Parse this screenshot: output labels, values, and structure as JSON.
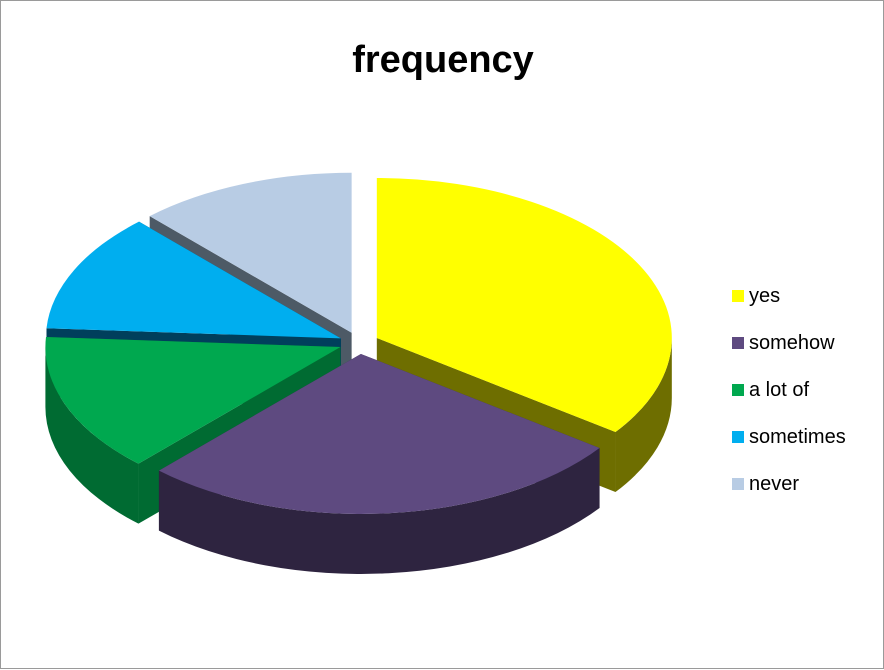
{
  "chart_data": {
    "type": "pie",
    "title": "frequency",
    "legend_position": "right",
    "series": [
      {
        "label": "yes",
        "value": 35,
        "color": "#FFFF00",
        "side_color": "#6E6E00"
      },
      {
        "label": "somehow",
        "value": 27,
        "color": "#5E4A80",
        "side_color": "#2E2440"
      },
      {
        "label": "a lot of",
        "value": 14,
        "color": "#00A84F",
        "side_color": "#006B32"
      },
      {
        "label": "sometimes",
        "value": 12,
        "color": "#00AEEF",
        "side_color": "#003F5C"
      },
      {
        "label": "never",
        "value": 12,
        "color": "#B8CCE4",
        "side_color": "#4D5A66"
      }
    ]
  }
}
